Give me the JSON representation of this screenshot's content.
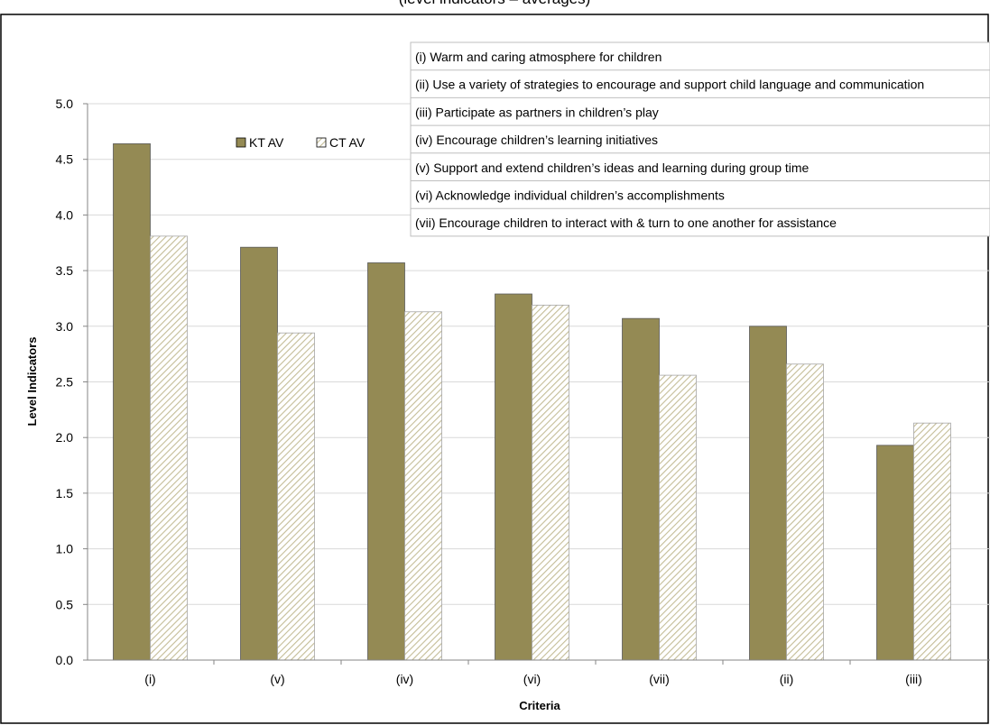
{
  "chart_data": {
    "type": "bar",
    "title": "(level indicators – averages)",
    "xlabel": "Criteria",
    "ylabel": "Level Indicators",
    "ylim": [
      0,
      5
    ],
    "yticks": [
      "0.0",
      "0.5",
      "1.0",
      "1.5",
      "2.0",
      "2.5",
      "3.0",
      "3.5",
      "4.0",
      "4.5",
      "5.0"
    ],
    "categories": [
      "(i)",
      "(v)",
      "(iv)",
      "(vi)",
      "(vii)",
      "(ii)",
      "(iii)"
    ],
    "series": [
      {
        "name": "KT AV",
        "values": [
          4.64,
          3.71,
          3.57,
          3.29,
          3.07,
          3.0,
          1.93
        ],
        "color": "#948a54",
        "pattern": "solid"
      },
      {
        "name": "CT AV",
        "values": [
          3.81,
          2.94,
          3.13,
          3.19,
          2.56,
          2.66,
          2.13
        ],
        "color": "#c4bd97",
        "pattern": "diagonal-hatch"
      }
    ],
    "grid": true,
    "legend_position": "top-center",
    "criteria_key": [
      "(i) Warm and caring atmosphere for children",
      "(ii) Use a variety of strategies to encourage and support child language and communication",
      "(iii) Participate as partners in children’s play",
      "(iv) Encourage children’s learning initiatives",
      "(v) Support and extend children’s ideas and learning during group time",
      "(vi) Acknowledge individual children’s accomplishments",
      "(vii) Encourage children to interact with & turn to one another for assistance"
    ]
  }
}
